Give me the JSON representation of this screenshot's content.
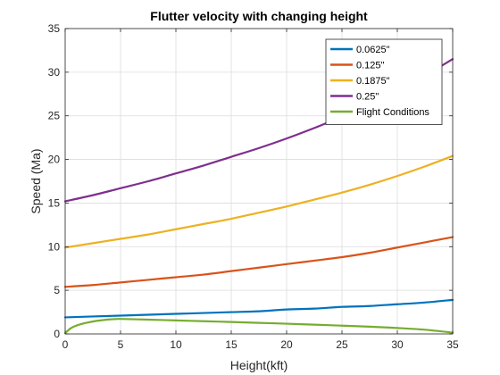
{
  "chart_data": {
    "type": "line",
    "title": "Flutter velocity with changing height",
    "xlabel": "Height(kft)",
    "ylabel": "Speed (Ma)",
    "xlim": [
      0,
      35
    ],
    "ylim": [
      0,
      35
    ],
    "xticks": [
      0,
      5,
      10,
      15,
      20,
      25,
      30,
      35
    ],
    "yticks": [
      0,
      5,
      10,
      15,
      20,
      25,
      30,
      35
    ],
    "grid": true,
    "legend_position": "top-right",
    "x": [
      0,
      2.5,
      5,
      7.5,
      10,
      12.5,
      15,
      17.5,
      20,
      22.5,
      25,
      27.5,
      30,
      32.5,
      35
    ],
    "series": [
      {
        "name": "0.0625\"",
        "color": "#0072BD",
        "values": [
          1.9,
          2.0,
          2.1,
          2.2,
          2.3,
          2.4,
          2.5,
          2.6,
          2.8,
          2.9,
          3.1,
          3.2,
          3.4,
          3.6,
          3.9
        ]
      },
      {
        "name": "0.125\"",
        "color": "#D95319",
        "values": [
          5.4,
          5.6,
          5.9,
          6.2,
          6.5,
          6.8,
          7.2,
          7.6,
          8.0,
          8.4,
          8.8,
          9.3,
          9.9,
          10.5,
          11.1
        ]
      },
      {
        "name": "0.1875\"",
        "color": "#EDB120",
        "values": [
          9.9,
          10.4,
          10.9,
          11.4,
          12.0,
          12.6,
          13.2,
          13.9,
          14.6,
          15.4,
          16.2,
          17.1,
          18.1,
          19.2,
          20.4
        ]
      },
      {
        "name": "0.25\"",
        "color": "#7E2F8E",
        "values": [
          15.2,
          15.9,
          16.7,
          17.5,
          18.4,
          19.3,
          20.3,
          21.3,
          22.4,
          23.6,
          24.9,
          26.2,
          27.7,
          29.6,
          31.5
        ]
      },
      {
        "name": "Flight Conditions",
        "color": "#77AC30",
        "x": [
          0,
          0.5,
          1,
          1.5,
          2,
          2.5,
          3,
          3.5,
          4,
          4.5,
          5,
          7.5,
          10,
          12.5,
          15,
          17.5,
          20,
          22.5,
          25,
          27.5,
          30,
          32.5,
          35
        ],
        "values": [
          0.1,
          0.65,
          0.95,
          1.15,
          1.3,
          1.42,
          1.52,
          1.6,
          1.66,
          1.7,
          1.72,
          1.64,
          1.55,
          1.46,
          1.37,
          1.27,
          1.17,
          1.06,
          0.95,
          0.83,
          0.68,
          0.48,
          0.15
        ]
      }
    ]
  }
}
